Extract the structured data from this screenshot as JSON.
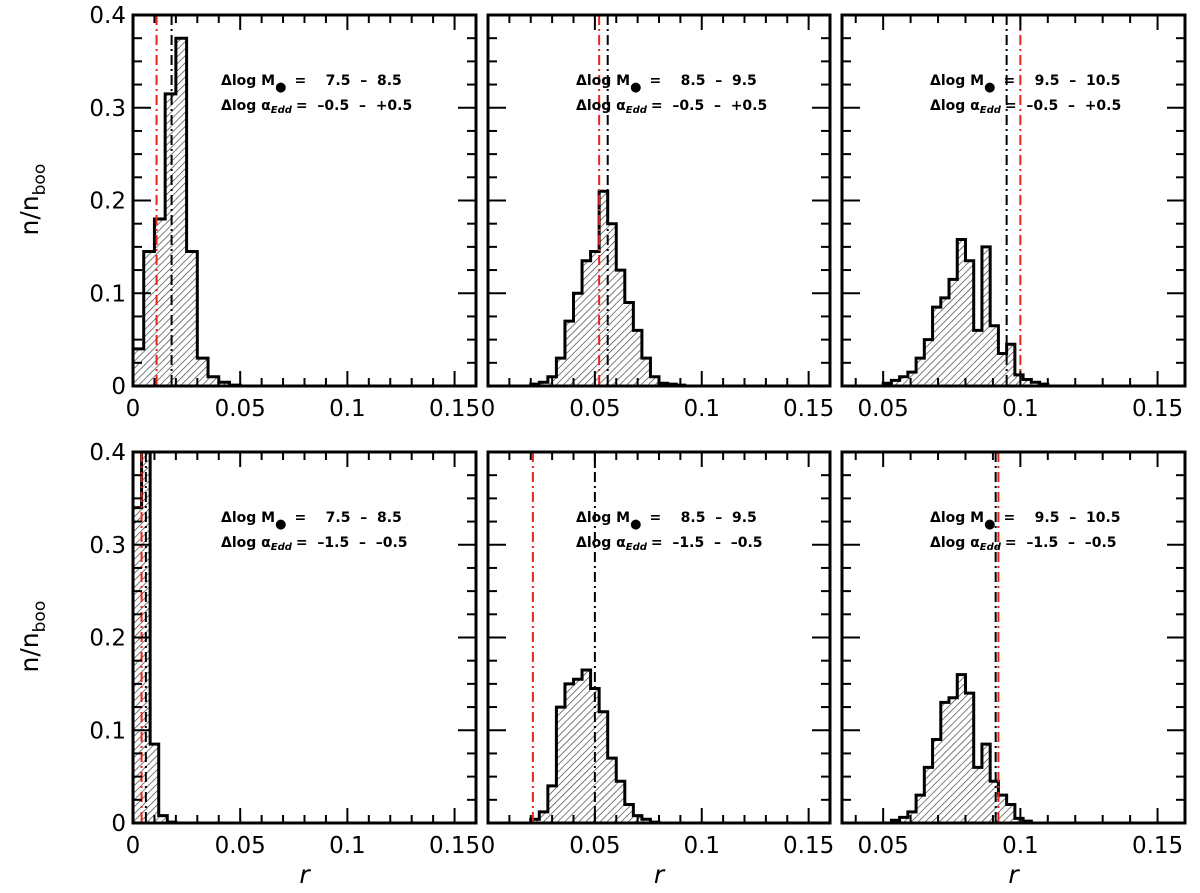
{
  "chart_data": [
    {
      "type": "bar",
      "panel": "top-left",
      "ylabel_main": "n/n",
      "ylabel_sub": "boo",
      "xlabel": "",
      "xlim": [
        0,
        0.16
      ],
      "ylim": [
        0,
        0.4
      ],
      "x_tick_labels": [
        "0",
        "0.05",
        "0.1",
        "0.15"
      ],
      "y_tick_labels": [
        "0",
        "0.1",
        "0.2",
        "0.3",
        "0.4"
      ],
      "bin_width": 0.005,
      "bins_start": 0.0,
      "values": [
        0.04,
        0.145,
        0.18,
        0.315,
        0.375,
        0.145,
        0.03,
        0.01,
        0.004,
        0.001
      ],
      "ann_line1": "Δlog M",
      "ann_line1_sym": "●",
      "ann_line1_value": "=    7.5  –  8.5",
      "ann_line2": "Δlog α",
      "ann_line2_sub": "Edd",
      "ann_line2_value": "=  –0.5  –  +0.5",
      "black_dashdot_x": 0.018,
      "red_dashdot_x": 0.011
    },
    {
      "type": "bar",
      "panel": "top-middle",
      "xlabel": "",
      "xlim": [
        0,
        0.16
      ],
      "ylim": [
        0,
        0.4
      ],
      "x_tick_labels": [
        "0",
        "0.05",
        "0.1",
        "0.15"
      ],
      "bin_width": 0.004,
      "bins_start": 0.02,
      "values": [
        0.002,
        0.004,
        0.01,
        0.03,
        0.07,
        0.1,
        0.135,
        0.145,
        0.21,
        0.175,
        0.125,
        0.09,
        0.06,
        0.03,
        0.01,
        0.003,
        0.002,
        0.001
      ],
      "ann_line1": "Δlog M",
      "ann_line1_sym": "●",
      "ann_line1_value": "=    8.5  –  9.5",
      "ann_line2": "Δlog α",
      "ann_line2_sub": "Edd",
      "ann_line2_value": "=  –0.5  –  +0.5",
      "black_dashdot_x": 0.056,
      "red_dashdot_x": 0.052
    },
    {
      "type": "bar",
      "panel": "top-right",
      "xlabel": "",
      "xlim": [
        0.035,
        0.16
      ],
      "ylim": [
        0,
        0.4
      ],
      "x_tick_labels": [
        "0.05",
        "0.1",
        "0.15"
      ],
      "bin_width": 0.003,
      "bins_start": 0.05,
      "values": [
        0.003,
        0.006,
        0.01,
        0.015,
        0.03,
        0.05,
        0.085,
        0.095,
        0.115,
        0.158,
        0.135,
        0.06,
        0.15,
        0.065,
        0.035,
        0.045,
        0.012,
        0.007,
        0.004,
        0.002
      ],
      "ann_line1": "Δlog M",
      "ann_line1_sym": "●",
      "ann_line1_value": "=    9.5  –  10.5",
      "ann_line2": "Δlog α",
      "ann_line2_sub": "Edd",
      "ann_line2_value": "=  –0.5  –  +0.5",
      "black_dashdot_x": 0.095,
      "red_dashdot_x": 0.1
    },
    {
      "type": "bar",
      "panel": "bottom-left",
      "ylabel_main": "n/n",
      "ylabel_sub": "boo",
      "xlabel": "r",
      "xlim": [
        0,
        0.16
      ],
      "ylim": [
        0,
        0.4
      ],
      "x_tick_labels": [
        "0",
        "0.05",
        "0.1",
        "0.15"
      ],
      "y_tick_labels": [
        "0",
        "0.1",
        "0.2",
        "0.3",
        "0.4"
      ],
      "bin_width": 0.004,
      "bins_start": 0.0,
      "values": [
        0.34,
        0.4,
        0.085,
        0.008,
        0.001
      ],
      "ann_line1": "Δlog M",
      "ann_line1_sym": "●",
      "ann_line1_value": "=    7.5  –  8.5",
      "ann_line2": "Δlog α",
      "ann_line2_sub": "Edd",
      "ann_line2_value": "=  –1.5  –  –0.5",
      "black_dashdot_x": 0.006,
      "red_dashdot_x": 0.004
    },
    {
      "type": "bar",
      "panel": "bottom-middle",
      "xlabel": "r",
      "xlim": [
        0,
        0.16
      ],
      "ylim": [
        0,
        0.4
      ],
      "x_tick_labels": [
        "0",
        "0.05",
        "0.1",
        "0.15"
      ],
      "bin_width": 0.004,
      "bins_start": 0.02,
      "values": [
        0.004,
        0.012,
        0.04,
        0.125,
        0.15,
        0.155,
        0.165,
        0.145,
        0.12,
        0.07,
        0.045,
        0.02,
        0.008,
        0.004,
        0.001
      ],
      "ann_line1": "Δlog M",
      "ann_line1_sym": "●",
      "ann_line1_value": "=    8.5  –  9.5",
      "ann_line2": "Δlog α",
      "ann_line2_sub": "Edd",
      "ann_line2_value": "=  –1.5  –  –0.5",
      "black_dashdot_x": 0.05,
      "red_dashdot_x": 0.021
    },
    {
      "type": "bar",
      "panel": "bottom-right",
      "xlabel": "r",
      "xlim": [
        0.035,
        0.16
      ],
      "ylim": [
        0,
        0.4
      ],
      "x_tick_labels": [
        "0.05",
        "0.1",
        "0.15"
      ],
      "bin_width": 0.003,
      "bins_start": 0.053,
      "values": [
        0.003,
        0.006,
        0.012,
        0.03,
        0.06,
        0.09,
        0.13,
        0.135,
        0.16,
        0.14,
        0.06,
        0.085,
        0.045,
        0.03,
        0.02,
        0.005,
        0.002
      ],
      "ann_line1": "Δlog M",
      "ann_line1_sym": "●",
      "ann_line1_value": "=    9.5  –  10.5",
      "ann_line2": "Δlog α",
      "ann_line2_sub": "Edd",
      "ann_line2_value": "=  –1.5  –  –0.5",
      "black_dashdot_x": 0.091,
      "red_dashdot_x": 0.092
    }
  ],
  "colors": {
    "axis": "#000000",
    "histogram_edge": "#000000",
    "hatch": "#000000",
    "black_line": "#000000",
    "red_line": "#e8241b"
  }
}
